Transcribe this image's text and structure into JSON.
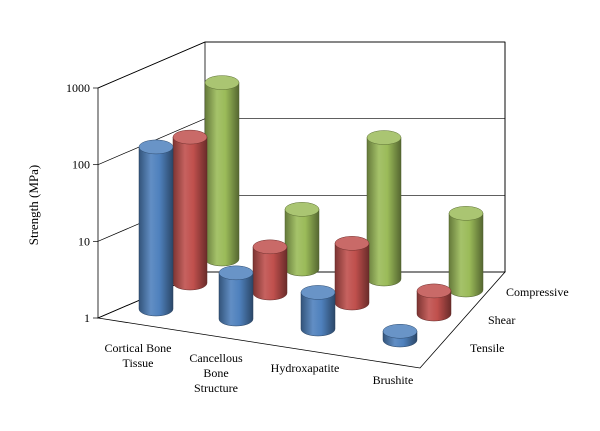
{
  "chart_data": {
    "type": "bar",
    "subtype": "3d-cylinder",
    "ylabel": "Strength (MPa)",
    "yscale": "log",
    "ylim": [
      1,
      1000
    ],
    "yticks": [
      "1",
      "10",
      "100",
      "1000"
    ],
    "grid": true,
    "categories": [
      "Cortical Bone Tissue",
      "Cancellous Bone Structure",
      "Hydroxapatite",
      "Brushite"
    ],
    "categories_display": [
      [
        "Cortical Bone",
        "Tissue"
      ],
      [
        "Cancellous",
        "Bone",
        "Structure"
      ],
      [
        "Hydroxapatite"
      ],
      [
        "Brushite"
      ]
    ],
    "series": [
      {
        "name": "Tensile",
        "color": "#4f81bd",
        "values": [
          130,
          4,
          3,
          1.3
        ]
      },
      {
        "name": "Shear",
        "color": "#c0504d",
        "values": [
          80,
          4,
          6,
          2
        ]
      },
      {
        "name": "Compressive",
        "color": "#9bbb59",
        "values": [
          200,
          6,
          70,
          10
        ]
      }
    ]
  }
}
